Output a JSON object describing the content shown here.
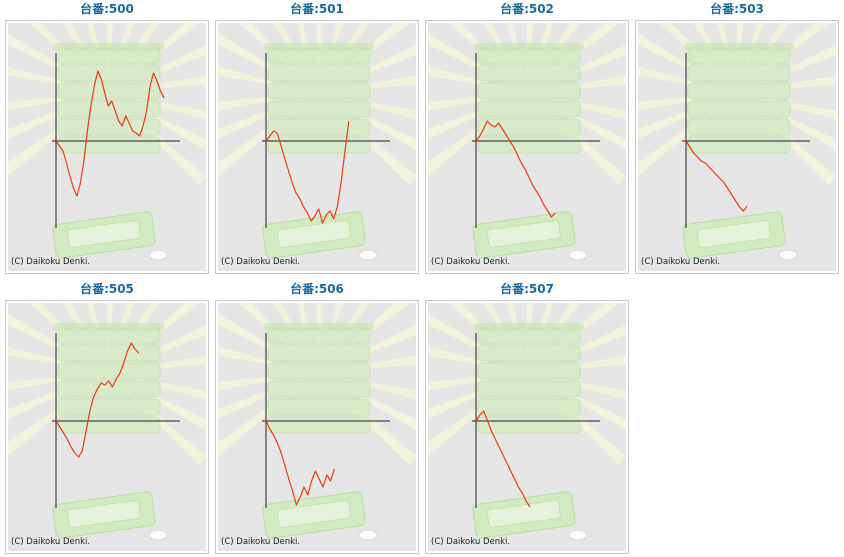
{
  "charts": [
    {
      "label": "台番:500",
      "copyright": "(C) Daikoku Denki.",
      "data": [
        0,
        -5,
        -10,
        -22,
        -35,
        -47,
        -55,
        -42,
        -20,
        10,
        35,
        55,
        70,
        62,
        48,
        35,
        40,
        30,
        20,
        15,
        25,
        18,
        10,
        8,
        5,
        15,
        30,
        55,
        68,
        60,
        50,
        43
      ]
    },
    {
      "label": "台番:501",
      "copyright": "(C) Daikoku Denki.",
      "data": [
        0,
        5,
        10,
        8,
        -5,
        -18,
        -30,
        -42,
        -52,
        -58,
        -66,
        -72,
        -80,
        -75,
        -68,
        -82,
        -74,
        -70,
        -78,
        -65,
        -40,
        -10,
        20
      ]
    },
    {
      "label": "台番:502",
      "copyright": "(C) Daikoku Denki.",
      "data": [
        0,
        5,
        12,
        20,
        16,
        14,
        18,
        12,
        6,
        0,
        -6,
        -14,
        -22,
        -28,
        -36,
        -44,
        -50,
        -56,
        -64,
        -70,
        -76,
        -72
      ]
    },
    {
      "label": "台番:503",
      "copyright": "(C) Daikoku Denki.",
      "data": [
        0,
        -6,
        -12,
        -16,
        -20,
        -22,
        -26,
        -30,
        -34,
        -38,
        -42,
        -48,
        -54,
        -60,
        -66,
        -70,
        -65
      ]
    },
    {
      "label": "台番:505",
      "copyright": "(C) Daikoku Denki.",
      "data": [
        0,
        -6,
        -12,
        -18,
        -26,
        -32,
        -36,
        -30,
        -10,
        10,
        24,
        32,
        38,
        36,
        40,
        34,
        42,
        48,
        58,
        70,
        78,
        72,
        68
      ]
    },
    {
      "label": "台番:506",
      "copyright": "(C) Daikoku Denki.",
      "data": [
        0,
        -8,
        -14,
        -22,
        -32,
        -45,
        -58,
        -70,
        -84,
        -76,
        -66,
        -74,
        -60,
        -50,
        -58,
        -66,
        -54,
        -60,
        -48
      ]
    },
    {
      "label": "台番:507",
      "copyright": "(C) Daikoku Denki.",
      "data": [
        0,
        6,
        10,
        0,
        -10,
        -18,
        -26,
        -34,
        -42,
        -50,
        -58,
        -66,
        -72,
        -80,
        -86
      ]
    }
  ]
}
